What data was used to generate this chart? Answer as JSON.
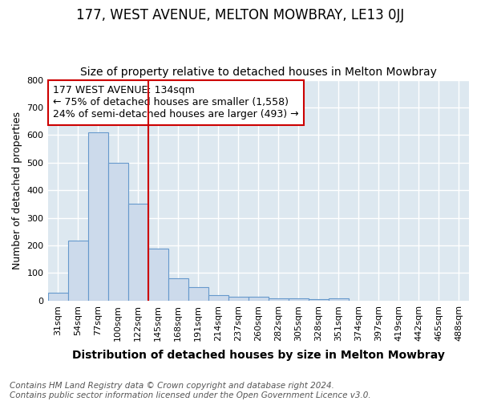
{
  "title": "177, WEST AVENUE, MELTON MOWBRAY, LE13 0JJ",
  "subtitle": "Size of property relative to detached houses in Melton Mowbray",
  "xlabel": "Distribution of detached houses by size in Melton Mowbray",
  "ylabel": "Number of detached properties",
  "categories": [
    "31sqm",
    "54sqm",
    "77sqm",
    "100sqm",
    "122sqm",
    "145sqm",
    "168sqm",
    "191sqm",
    "214sqm",
    "237sqm",
    "260sqm",
    "282sqm",
    "305sqm",
    "328sqm",
    "351sqm",
    "374sqm",
    "397sqm",
    "419sqm",
    "442sqm",
    "465sqm",
    "488sqm"
  ],
  "values": [
    30,
    218,
    610,
    498,
    352,
    190,
    82,
    50,
    20,
    13,
    13,
    7,
    7,
    5,
    7,
    0,
    0,
    0,
    0,
    0,
    0
  ],
  "bar_color": "#ccdaeb",
  "bar_edge_color": "#6699cc",
  "background_color": "#dde8f0",
  "grid_color": "#ffffff",
  "vline_color": "#cc0000",
  "vline_x": 4.5,
  "annotation_text": "177 WEST AVENUE: 134sqm\n← 75% of detached houses are smaller (1,558)\n24% of semi-detached houses are larger (493) →",
  "annotation_box_color": "#ffffff",
  "annotation_box_edge": "#cc0000",
  "ylim": [
    0,
    800
  ],
  "yticks": [
    0,
    100,
    200,
    300,
    400,
    500,
    600,
    700,
    800
  ],
  "fig_bg": "#ffffff",
  "footnote": "Contains HM Land Registry data © Crown copyright and database right 2024.\nContains public sector information licensed under the Open Government Licence v3.0.",
  "title_fontsize": 12,
  "subtitle_fontsize": 10,
  "xlabel_fontsize": 10,
  "ylabel_fontsize": 9,
  "tick_fontsize": 8,
  "annot_fontsize": 9,
  "footnote_fontsize": 7.5
}
